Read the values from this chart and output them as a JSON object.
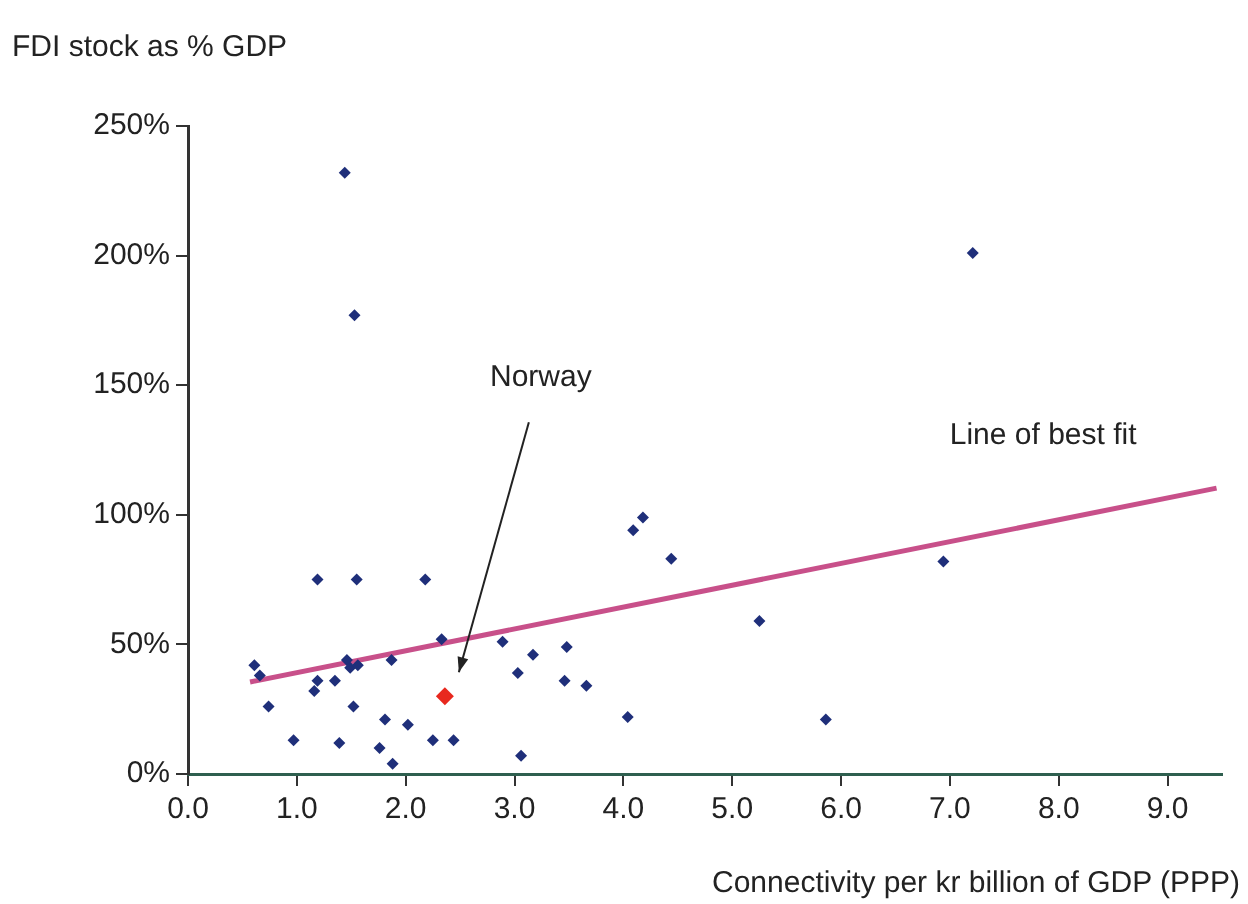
{
  "chart_data": {
    "type": "scatter",
    "ylabel": "FDI stock as % GDP",
    "xlabel": "Connectivity per kr billion of GDP (PPP)",
    "xlim": [
      0,
      9.5
    ],
    "ylim": [
      0,
      250
    ],
    "xticks": [
      {
        "value": 0,
        "label": "0.0"
      },
      {
        "value": 1,
        "label": "1.0"
      },
      {
        "value": 2,
        "label": "2.0"
      },
      {
        "value": 3,
        "label": "3.0"
      },
      {
        "value": 4,
        "label": "4.0"
      },
      {
        "value": 5,
        "label": "5.0"
      },
      {
        "value": 6,
        "label": "6.0"
      },
      {
        "value": 7,
        "label": "7.0"
      },
      {
        "value": 8,
        "label": "8.0"
      },
      {
        "value": 9,
        "label": "9.0"
      }
    ],
    "yticks": [
      {
        "value": 0,
        "label": "0%"
      },
      {
        "value": 50,
        "label": "50%"
      },
      {
        "value": 100,
        "label": "100%"
      },
      {
        "value": 150,
        "label": "150%"
      },
      {
        "value": 200,
        "label": "200%"
      },
      {
        "value": 250,
        "label": "250%"
      }
    ],
    "grid": false,
    "legend": false,
    "marker": "diamond",
    "series": [
      {
        "color": "#1f2f7a",
        "x": [
          0.61,
          0.66,
          0.74,
          0.97,
          1.19,
          1.19,
          1.16,
          1.35,
          1.39,
          1.46,
          1.49,
          1.52,
          1.55,
          1.56,
          1.76,
          1.81,
          1.87,
          1.88,
          2.02,
          2.18,
          2.25,
          2.33,
          2.44,
          2.89,
          3.03,
          3.06,
          3.17,
          3.46,
          3.48,
          3.66,
          4.04,
          4.09,
          4.18,
          4.44,
          1.44,
          1.53,
          5.25,
          5.86,
          6.94,
          7.21
        ],
        "values": [
          42,
          38,
          26,
          13,
          75,
          36,
          32,
          36,
          12,
          44,
          41,
          26,
          75,
          42,
          10,
          21,
          44,
          4,
          19,
          75,
          13,
          52,
          13,
          51,
          39,
          7,
          46,
          36,
          49,
          34,
          22,
          94,
          99,
          83,
          232,
          177,
          59,
          21,
          82,
          201
        ]
      },
      {
        "name": "Norway",
        "color": "#e8281e",
        "x": [
          2.36
        ],
        "values": [
          30
        ]
      },
      {
        "name": "Line of best fit",
        "type": "line",
        "color": "#c8508a",
        "marker": "none",
        "x": [
          0.57,
          9.45
        ],
        "values": [
          35.5,
          110.3
        ]
      }
    ]
  }
}
